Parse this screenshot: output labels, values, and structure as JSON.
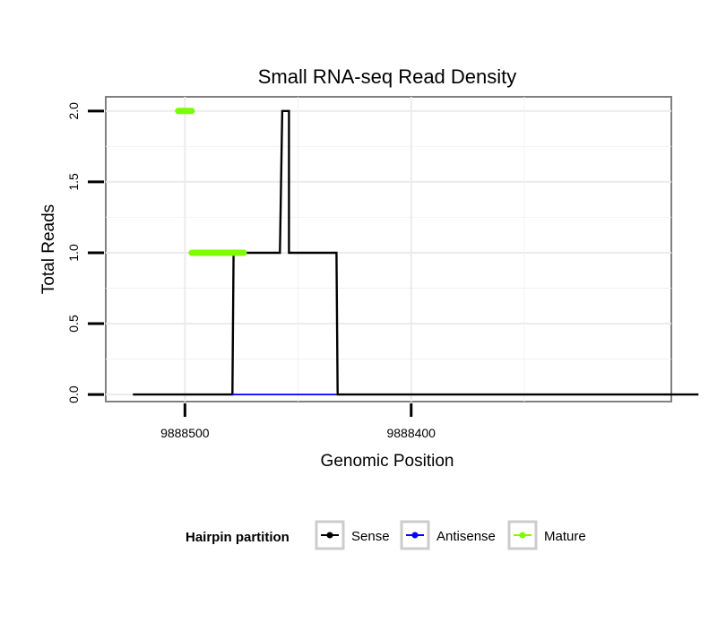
{
  "chart_data": {
    "type": "line",
    "title": "Small RNA-seq Read Density",
    "xlabel": "Genomic Position",
    "ylabel": "Total Reads",
    "x_reversed": true,
    "xlim": [
      9888535,
      9888285
    ],
    "ylim": [
      -0.05,
      2.1
    ],
    "x_ticks": [
      9888500,
      9888400
    ],
    "x_tick_labels": [
      "9888500",
      "9888400"
    ],
    "y_ticks": [
      0,
      0.5,
      1,
      1.5,
      2
    ],
    "y_tick_labels": [
      "0.0",
      "0.5",
      "1.0",
      "1.5",
      "2.0"
    ],
    "grid": true,
    "series": [
      {
        "name": "Sense",
        "color": "#000000",
        "x": [
          9888523,
          9888479,
          9888478.5,
          9888458,
          9888457,
          9888455,
          9888455,
          9888454,
          9888454,
          9888433,
          9888432.5,
          9888273
        ],
        "y": [
          0,
          0,
          1,
          1,
          2,
          2,
          2,
          2,
          1,
          1,
          0,
          0
        ]
      },
      {
        "name": "Antisense",
        "color": "#0000ff",
        "x": [
          9888479,
          9888433
        ],
        "y": [
          0,
          0
        ]
      },
      {
        "name": "Mature",
        "color": "#7cfc00",
        "segments": [
          {
            "x": [
              9888503,
              9888497
            ],
            "y": [
              2,
              2
            ]
          },
          {
            "x": [
              9888497,
              9888474
            ],
            "y": [
              1,
              1
            ]
          }
        ]
      }
    ],
    "legend": {
      "title": "Hairpin partition",
      "position": "bottom",
      "entries": [
        {
          "label": "Sense",
          "color": "#000000"
        },
        {
          "label": "Antisense",
          "color": "#0000ff"
        },
        {
          "label": "Mature",
          "color": "#7cfc00"
        }
      ]
    }
  }
}
